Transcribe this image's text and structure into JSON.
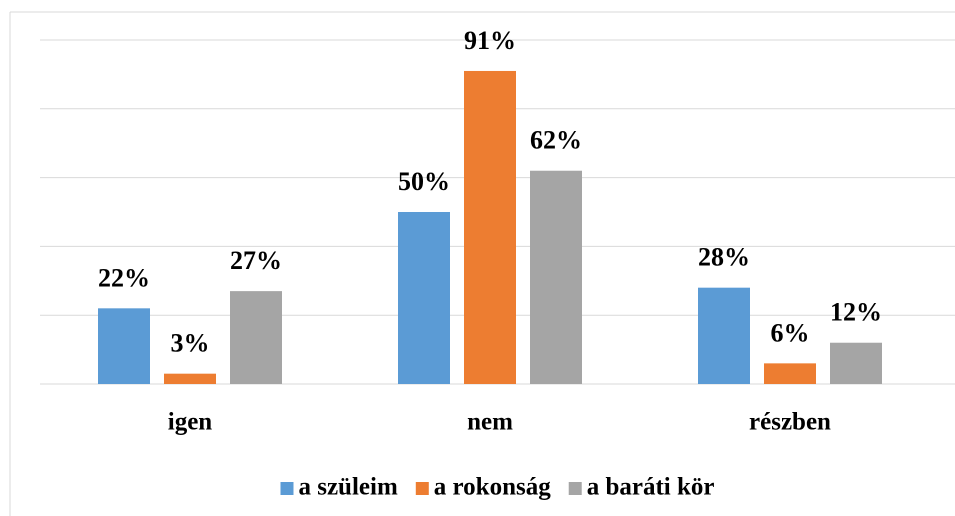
{
  "chart_data": {
    "type": "bar",
    "categories": [
      "igen",
      "nem",
      "részben"
    ],
    "series": [
      {
        "name": "a szüleim",
        "color": "#5b9bd5",
        "values": [
          22,
          50,
          28
        ],
        "value_labels": [
          "22%",
          "50%",
          "28%"
        ]
      },
      {
        "name": "a rokonság",
        "color": "#ed7d31",
        "values": [
          3,
          91,
          6
        ],
        "value_labels": [
          "3%",
          "91%",
          "6%"
        ]
      },
      {
        "name": "a baráti kör",
        "color": "#a5a5a5",
        "values": [
          27,
          62,
          12
        ],
        "value_labels": [
          "27%",
          "62%",
          "12%"
        ]
      }
    ],
    "ylim": [
      0,
      100
    ],
    "yticks": [
      0,
      20,
      40,
      60,
      80,
      100
    ],
    "grid": true,
    "legend": "bottom"
  }
}
